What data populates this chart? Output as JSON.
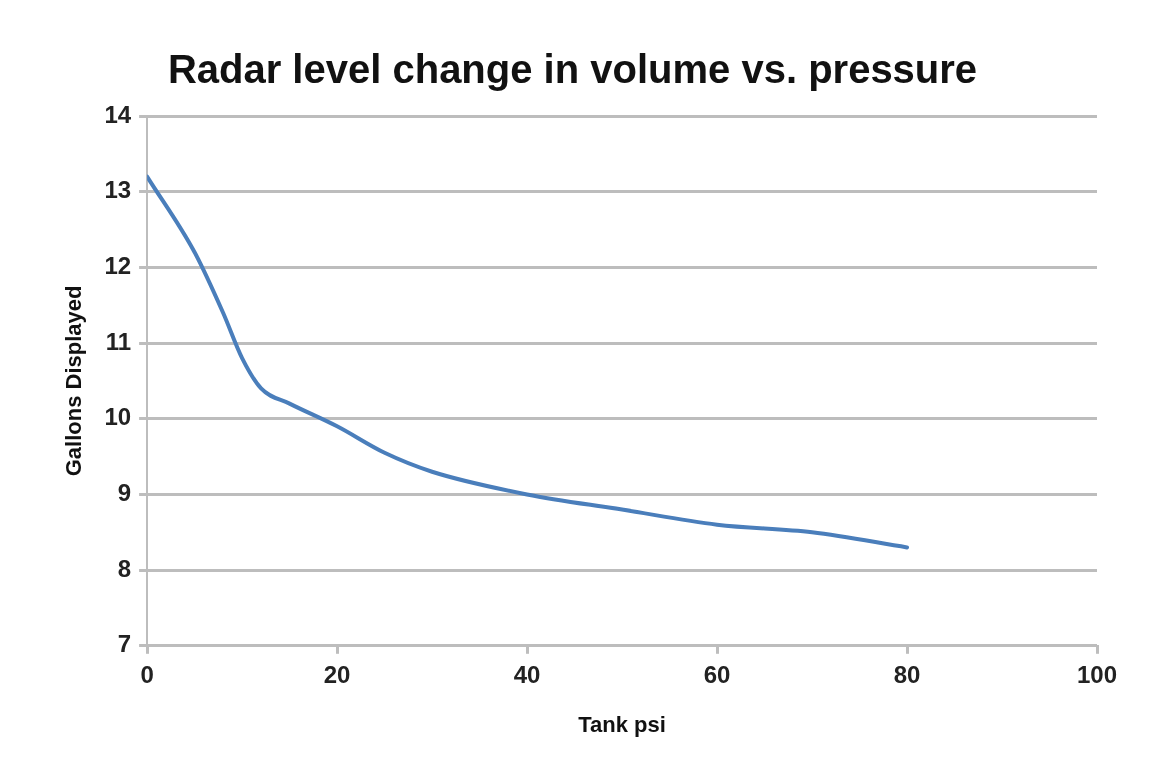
{
  "chart_data": {
    "type": "line",
    "title": "Radar level change in volume vs. pressure",
    "xlabel": "Tank psi",
    "ylabel": "Gallons Displayed",
    "x": [
      0,
      5,
      8,
      10,
      12,
      15,
      20,
      25,
      30,
      40,
      50,
      60,
      70,
      80
    ],
    "series": [
      {
        "color": "#4a7ebb",
        "values": [
          13.2,
          12.2,
          11.4,
          10.8,
          10.4,
          10.2,
          9.9,
          9.55,
          9.3,
          9.0,
          8.8,
          8.6,
          8.5,
          8.3
        ]
      }
    ],
    "xlim": [
      0,
      100
    ],
    "xticks": [
      0,
      20,
      40,
      60,
      80,
      100
    ],
    "ylim": [
      7,
      14
    ],
    "yticks": [
      7,
      8,
      9,
      10,
      11,
      12,
      13,
      14
    ],
    "grid": "y",
    "legend": false,
    "marker": "none",
    "line_style": "solid"
  }
}
